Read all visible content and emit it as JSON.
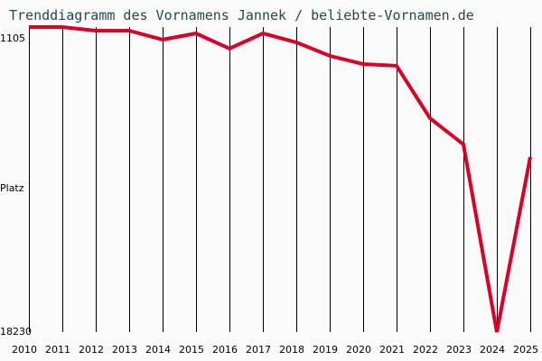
{
  "chart_data": {
    "type": "line",
    "title": "Trenddiagramm des Vornamens Jannek / beliebte-Vornamen.de",
    "xlabel": "",
    "ylabel": "Platz",
    "y_axis_inverted": true,
    "ylim": [
      1105,
      18230
    ],
    "y_ticks": [
      "1105",
      "18230"
    ],
    "categories": [
      "2010",
      "2011",
      "2012",
      "2013",
      "2014",
      "2015",
      "2016",
      "2017",
      "2018",
      "2019",
      "2020",
      "2021",
      "2022",
      "2023",
      "2024",
      "2025"
    ],
    "series": [
      {
        "name": "Jannek",
        "color": "#d9002a",
        "values": [
          1105,
          1105,
          1310,
          1310,
          1810,
          1460,
          2310,
          1460,
          1960,
          2720,
          3180,
          3280,
          6220,
          7690,
          18230,
          8400
        ]
      }
    ],
    "grid": "vertical",
    "legend": "none"
  },
  "labels": {
    "title": "Trenddiagramm des Vornamens Jannek / beliebte-Vornamen.de",
    "y_top": "1105",
    "y_mid": "Platz",
    "y_bottom": "18230"
  }
}
